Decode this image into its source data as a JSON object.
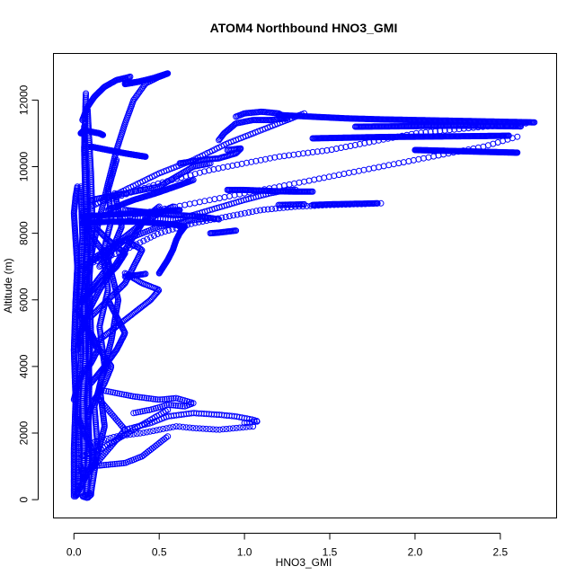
{
  "chart_data": {
    "type": "scatter",
    "title": "ATOM4 Northbound HNO3_GMI",
    "xlabel": "HNO3_GMI",
    "ylabel": "Altitude (m)",
    "xlim": [
      -0.12,
      2.83
    ],
    "ylim": [
      -550,
      13400
    ],
    "x_ticks": [
      {
        "value": 0.0,
        "label": "0.0"
      },
      {
        "value": 0.5,
        "label": "0.5"
      },
      {
        "value": 1.0,
        "label": "1.0"
      },
      {
        "value": 1.5,
        "label": "1.5"
      },
      {
        "value": 2.0,
        "label": "2.0"
      },
      {
        "value": 2.5,
        "label": "2.5"
      }
    ],
    "y_ticks": [
      {
        "value": 0,
        "label": "0"
      },
      {
        "value": 2000,
        "label": "2000"
      },
      {
        "value": 4000,
        "label": "4000"
      },
      {
        "value": 6000,
        "label": "6000"
      },
      {
        "value": 8000,
        "label": "8000"
      },
      {
        "value": 10000,
        "label": "10000"
      },
      {
        "value": 12000,
        "label": "12000"
      }
    ],
    "marker": "open-circle",
    "color": "#0000ff",
    "grid": false,
    "legend": "none",
    "segments": [
      {
        "x": [
          0.0,
          0.0,
          0.01,
          0.0,
          0.01,
          0.02,
          0.01,
          0.0,
          0.01,
          0.02
        ],
        "y": [
          100,
          1500,
          3000,
          4500,
          6000,
          7000,
          7800,
          8600,
          9100,
          9400
        ],
        "n": 220
      },
      {
        "x": [
          0.02,
          0.03,
          0.02,
          0.04,
          0.03,
          0.05,
          0.04
        ],
        "y": [
          150,
          1200,
          2600,
          4200,
          6100,
          7900,
          9400
        ],
        "n": 200
      },
      {
        "x": [
          0.05,
          0.06,
          0.05,
          0.07,
          0.06,
          0.08,
          0.07,
          0.06
        ],
        "y": [
          200,
          1500,
          3000,
          4500,
          6000,
          7600,
          9000,
          11200
        ],
        "n": 220
      },
      {
        "x": [
          0.07,
          0.09,
          0.08,
          0.1,
          0.09,
          0.11,
          0.1,
          0.08
        ],
        "y": [
          150,
          1600,
          3200,
          5000,
          6600,
          8200,
          9800,
          11700
        ],
        "n": 220
      },
      {
        "x": [
          0.08,
          0.09,
          0.08,
          0.07,
          0.06,
          0.07
        ],
        "y": [
          1000,
          3500,
          6000,
          8500,
          10500,
          12200
        ],
        "n": 220
      },
      {
        "x": [
          0.1,
          0.14,
          0.12,
          0.18,
          0.15,
          0.2,
          0.17,
          0.22,
          0.2,
          0.25
        ],
        "y": [
          200,
          1500,
          2800,
          4000,
          5200,
          6300,
          7400,
          8400,
          9300,
          10200
        ],
        "n": 200
      },
      {
        "x": [
          0.12,
          0.18,
          0.15,
          0.22,
          0.26,
          0.2,
          0.28,
          0.24
        ],
        "y": [
          1000,
          2200,
          3400,
          4800,
          6000,
          7200,
          8200,
          9200
        ],
        "n": 180
      },
      {
        "x": [
          0.05,
          0.12,
          0.2,
          0.25,
          0.3,
          0.35,
          0.42,
          0.5,
          0.55
        ],
        "y": [
          6000,
          7800,
          9500,
          10500,
          11300,
          12000,
          12500,
          12700,
          12800
        ],
        "n": 130
      },
      {
        "x": [
          0.3,
          0.38,
          0.46,
          0.52,
          0.55,
          0.5,
          0.42,
          0.35,
          0.3
        ],
        "y": [
          12500,
          12550,
          12650,
          12750,
          12800,
          12700,
          12600,
          12520,
          12480
        ],
        "n": 90
      },
      {
        "x": [
          0.05,
          0.08,
          0.12,
          0.18,
          0.25,
          0.33
        ],
        "y": [
          11400,
          11800,
          12100,
          12400,
          12600,
          12700
        ],
        "n": 60
      },
      {
        "x": [
          0.1,
          0.2,
          0.3,
          0.42
        ],
        "y": [
          10600,
          10500,
          10400,
          10300
        ],
        "n": 110
      },
      {
        "x": [
          0.04,
          0.06,
          0.1,
          0.15,
          0.17
        ],
        "y": [
          11000,
          11100,
          11050,
          11000,
          10950
        ],
        "n": 50
      },
      {
        "x": [
          0.1,
          0.3,
          0.5,
          0.6,
          0.7,
          0.8
        ],
        "y": [
          9000,
          9200,
          9400,
          9700,
          10000,
          10100
        ],
        "n": 80
      },
      {
        "x": [
          0.2,
          0.35,
          0.48,
          0.62,
          0.7
        ],
        "y": [
          8700,
          9000,
          9200,
          9450,
          9600
        ],
        "n": 80
      },
      {
        "x": [
          0.62,
          0.75,
          0.85,
          0.95,
          0.98,
          0.9
        ],
        "y": [
          10100,
          10200,
          10250,
          10400,
          10550,
          10500
        ],
        "n": 60
      },
      {
        "x": [
          0.1,
          0.3,
          0.5,
          0.7,
          0.9,
          1.1,
          1.25,
          1.35
        ],
        "y": [
          8800,
          9300,
          9800,
          10200,
          10700,
          11100,
          11400,
          11600
        ],
        "n": 90
      },
      {
        "x": [
          0.95,
          1.0,
          1.1,
          1.2,
          1.25,
          1.15,
          1.05,
          0.95,
          0.88,
          0.85
        ],
        "y": [
          11500,
          11600,
          11650,
          11600,
          11450,
          11400,
          11400,
          11300,
          11000,
          10800
        ],
        "n": 90
      },
      {
        "x": [
          1.2,
          1.4,
          1.6,
          1.8,
          2.0,
          2.2,
          2.4,
          2.6,
          2.7
        ],
        "y": [
          11550,
          11500,
          11450,
          11420,
          11400,
          11380,
          11360,
          11340,
          11330
        ],
        "n": 260
      },
      {
        "x": [
          1.4,
          1.6,
          1.8,
          2.0,
          2.2,
          2.4,
          2.55
        ],
        "y": [
          10850,
          10870,
          10890,
          10900,
          10910,
          10920,
          10930
        ],
        "n": 200
      },
      {
        "x": [
          1.65,
          1.85,
          2.05,
          2.25,
          2.45,
          2.62
        ],
        "y": [
          11200,
          11210,
          11220,
          11230,
          11220,
          11210
        ],
        "n": 160
      },
      {
        "x": [
          2.0,
          2.15,
          2.3,
          2.45,
          2.6
        ],
        "y": [
          10500,
          10480,
          10460,
          10440,
          10420
        ],
        "n": 140
      },
      {
        "x": [
          0.2,
          0.5,
          0.8,
          1.0,
          1.2,
          1.5,
          1.8,
          2.0,
          2.2,
          2.4,
          2.55,
          2.65
        ],
        "y": [
          9000,
          9500,
          9900,
          10100,
          10300,
          10500,
          10800,
          11000,
          11100,
          11200,
          11250,
          11300
        ],
        "n": 90
      },
      {
        "x": [
          0.3,
          0.6,
          0.9,
          1.2,
          1.5,
          1.8,
          2.1,
          2.4,
          2.6
        ],
        "y": [
          8500,
          8800,
          9100,
          9400,
          9700,
          10000,
          10300,
          10600,
          10900
        ],
        "n": 80
      },
      {
        "x": [
          0.3,
          0.6,
          0.8,
          1.0,
          1.15,
          1.25,
          1.3
        ],
        "y": [
          8500,
          8400,
          8700,
          9000,
          9200,
          9300,
          9300
        ],
        "n": 70
      },
      {
        "x": [
          0.9,
          1.0,
          1.1,
          1.2,
          1.3,
          1.4
        ],
        "y": [
          9300,
          9300,
          9280,
          9260,
          9250,
          9250
        ],
        "n": 80
      },
      {
        "x": [
          1.4,
          1.5,
          1.6,
          1.7,
          1.78
        ],
        "y": [
          8850,
          8870,
          8880,
          8890,
          8900
        ],
        "n": 60
      },
      {
        "x": [
          1.2,
          1.28,
          1.35
        ],
        "y": [
          8850,
          8860,
          8870
        ],
        "n": 20
      },
      {
        "x": [
          0.05,
          0.2,
          0.35,
          0.5,
          0.6,
          0.65
        ],
        "y": [
          8300,
          8350,
          8350,
          8300,
          8250,
          8200
        ],
        "n": 130
      },
      {
        "x": [
          0.05,
          0.2,
          0.35,
          0.5,
          0.62
        ],
        "y": [
          8500,
          8550,
          8600,
          8650,
          8700
        ],
        "n": 120
      },
      {
        "x": [
          0.3,
          0.45,
          0.6,
          0.75,
          0.85
        ],
        "y": [
          8700,
          8620,
          8550,
          8500,
          8420
        ],
        "n": 70
      },
      {
        "x": [
          0.8,
          0.85,
          0.9,
          0.95
        ],
        "y": [
          8000,
          8020,
          8050,
          8080
        ],
        "n": 25
      },
      {
        "x": [
          0.05,
          0.3,
          0.5,
          0.7,
          0.9,
          1.1,
          1.3,
          1.5,
          1.7,
          1.8
        ],
        "y": [
          7000,
          7500,
          8000,
          8300,
          8500,
          8700,
          8800,
          8850,
          8880,
          8900
        ],
        "n": 80
      },
      {
        "x": [
          0.1,
          0.25,
          0.4,
          0.5,
          0.6,
          0.7,
          0.78
        ],
        "y": [
          7200,
          7700,
          8000,
          8200,
          8300,
          8400,
          8450
        ],
        "n": 60
      },
      {
        "x": [
          0.05,
          0.12,
          0.2,
          0.3,
          0.4,
          0.5,
          0.58
        ],
        "y": [
          7000,
          7200,
          7500,
          7900,
          8300,
          8600,
          8800
        ],
        "n": 70
      },
      {
        "x": [
          0.5,
          0.55,
          0.58,
          0.6,
          0.62,
          0.65
        ],
        "y": [
          6800,
          7200,
          7500,
          7800,
          8000,
          8200
        ],
        "n": 60
      },
      {
        "x": [
          0.3,
          0.38,
          0.42
        ],
        "y": [
          6700,
          6750,
          6780
        ],
        "n": 20
      },
      {
        "x": [
          0.02,
          0.05,
          0.1,
          0.15,
          0.2,
          0.25,
          0.3,
          0.35,
          0.4,
          0.45,
          0.5
        ],
        "y": [
          4500,
          5200,
          5800,
          6300,
          6700,
          7100,
          7500,
          7900,
          8300,
          8600,
          8800
        ],
        "n": 110
      },
      {
        "x": [
          0.1,
          0.2,
          0.3,
          0.35,
          0.4,
          0.3,
          0.2,
          0.15
        ],
        "y": [
          5500,
          6000,
          6500,
          7000,
          7500,
          7800,
          7400,
          7000
        ],
        "n": 90
      },
      {
        "x": [
          0.05,
          0.15,
          0.25,
          0.3,
          0.2,
          0.12
        ],
        "y": [
          6000,
          6500,
          7000,
          7400,
          7800,
          8200
        ],
        "n": 80
      },
      {
        "x": [
          0.15,
          0.25,
          0.35,
          0.45,
          0.5,
          0.4,
          0.3
        ],
        "y": [
          4800,
          5200,
          5600,
          6000,
          6300,
          6500,
          6800
        ],
        "n": 70
      },
      {
        "x": [
          0.1,
          0.18,
          0.25,
          0.3,
          0.25,
          0.2
        ],
        "y": [
          3500,
          4000,
          4500,
          5000,
          5500,
          6000
        ],
        "n": 70
      },
      {
        "x": [
          0.08,
          0.12,
          0.18,
          0.22,
          0.15,
          0.1
        ],
        "y": [
          2500,
          3000,
          3500,
          4000,
          4500,
          5000
        ],
        "n": 60
      },
      {
        "x": [
          0.15,
          0.25,
          0.35,
          0.5,
          0.6,
          0.7,
          0.65,
          0.55,
          0.45,
          0.35
        ],
        "y": [
          3300,
          3200,
          3100,
          3000,
          3050,
          2900,
          2800,
          2850,
          2700,
          2600
        ],
        "n": 70
      },
      {
        "x": [
          0.3,
          0.45,
          0.55,
          0.7,
          0.85,
          0.95,
          1.05,
          1.08,
          1.0
        ],
        "y": [
          2100,
          2300,
          2500,
          2600,
          2550,
          2500,
          2400,
          2350,
          2300
        ],
        "n": 60
      },
      {
        "x": [
          0.1,
          0.25,
          0.4,
          0.5,
          0.6,
          0.7,
          0.85,
          0.95,
          1.05
        ],
        "y": [
          1700,
          1900,
          2000,
          2100,
          2200,
          2150,
          2100,
          2150,
          2200
        ],
        "n": 50
      },
      {
        "x": [
          0.05,
          0.15,
          0.25,
          0.35,
          0.45,
          0.55
        ],
        "y": [
          1300,
          1500,
          1800,
          2100,
          2400,
          2700
        ],
        "n": 40
      },
      {
        "x": [
          0.1,
          0.2,
          0.3,
          0.4,
          0.45,
          0.5,
          0.55
        ],
        "y": [
          1000,
          1050,
          1100,
          1300,
          1500,
          1700,
          1900
        ],
        "n": 40
      },
      {
        "x": [
          0.05,
          0.1,
          0.15,
          0.2,
          0.25,
          0.3,
          0.25,
          0.2,
          0.15
        ],
        "y": [
          600,
          900,
          1200,
          1500,
          1800,
          2100,
          2400,
          2700,
          3000
        ],
        "n": 50
      },
      {
        "x": [
          0.01,
          0.04,
          0.08,
          0.12,
          0.1,
          0.06,
          0.03
        ],
        "y": [
          100,
          400,
          800,
          1200,
          1600,
          2000,
          2400
        ],
        "n": 60
      },
      {
        "x": [
          0.0,
          0.02,
          0.05,
          0.1,
          0.14,
          0.1,
          0.06,
          0.02
        ],
        "y": [
          3000,
          3400,
          3800,
          4100,
          4500,
          4900,
          5300,
          5700
        ],
        "n": 70
      },
      {
        "x": [
          0.03,
          0.08,
          0.14,
          0.2,
          0.18,
          0.12,
          0.08,
          0.05
        ],
        "y": [
          5800,
          6200,
          6600,
          7000,
          7400,
          7800,
          8200,
          8600
        ],
        "n": 70
      },
      {
        "x": [
          0.1,
          0.05,
          0.08,
          0.1
        ],
        "y": [
          200,
          100,
          50,
          150
        ],
        "n": 15
      },
      {
        "x": [
          0.04,
          0.05,
          0.06,
          0.05
        ],
        "y": [
          1000,
          800,
          600,
          900
        ],
        "n": 12
      }
    ]
  }
}
